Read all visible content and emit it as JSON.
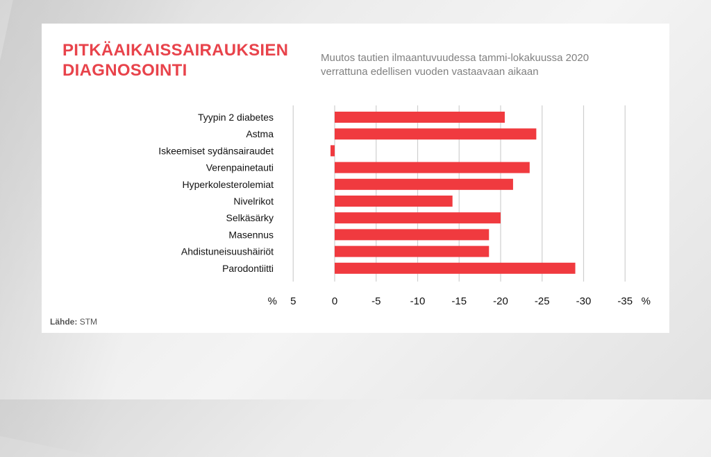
{
  "title": {
    "line1": "PITKÄAIKAISSAIRAUKSIEN",
    "line2": "DIAGNOSOINTI"
  },
  "subtitle": {
    "line1": "Muutos tautien ilmaantuvuudessa tammi-lokakuussa 2020",
    "line2": "verrattuna edellisen vuoden vastaavaan aikaan"
  },
  "source": {
    "label": "Lähde:",
    "value": "STM"
  },
  "colors": {
    "title": "#e8434b",
    "bar": "#f03a3f",
    "grid": "#cfcfcf"
  },
  "chart_data": {
    "type": "bar",
    "orientation": "horizontal",
    "axis_direction": "reversed",
    "categories": [
      "Tyypin 2 diabetes",
      "Astma",
      "Iskeemiset sydänsairaudet",
      "Verenpainetauti",
      "Hyperkolesterolemiat",
      "Nivelrikot",
      "Selkäsärky",
      "Masennus",
      "Ahdistuneisuushäiriöt",
      "Parodontiitti"
    ],
    "values": [
      -20.5,
      -24.3,
      0.5,
      -23.5,
      -21.5,
      -14.2,
      -20.0,
      -18.6,
      -18.6,
      -29.0
    ],
    "ticks": [
      "5",
      "0",
      "-5",
      "-10",
      "-15",
      "-20",
      "-25",
      "-30",
      "-35"
    ],
    "tick_values": [
      5,
      0,
      -5,
      -10,
      -15,
      -20,
      -25,
      -30,
      -35
    ],
    "unit_left": "%",
    "unit_right": "%",
    "xlim": [
      5,
      -35
    ],
    "grid": true,
    "title": "Muutos tautien ilmaantuvuudessa tammi-lokakuussa 2020"
  }
}
